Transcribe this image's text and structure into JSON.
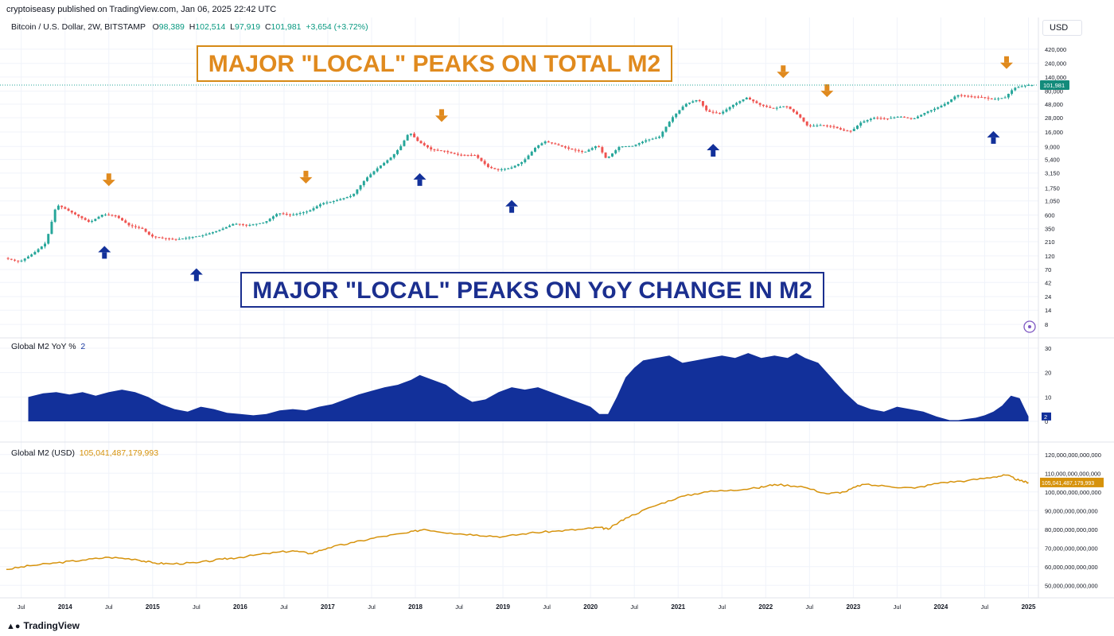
{
  "header": {
    "published_by": "cryptoiseasy published on TradingView.com, Jan 06, 2025 22:42 UTC",
    "symbol": "Bitcoin / U.S. Dollar, 2W, BITSTAMP",
    "o_label": "O",
    "o_value": "98,389",
    "h_label": "H",
    "h_value": "102,514",
    "l_label": "L",
    "l_value": "97,919",
    "c_label": "C",
    "c_value": "101,981",
    "change": "+3,654 (+3.72%)",
    "currency": "USD"
  },
  "annotations": {
    "orange_text": "MAJOR \"LOCAL\" PEAKS ON TOTAL M2",
    "blue_text": "MAJOR \"LOCAL\" PEAKS ON YoY CHANGE IN M2"
  },
  "footer": {
    "brand": "TradingView"
  },
  "colors": {
    "up": "#26a69a",
    "down": "#ef5350",
    "orange": "#e08a1e",
    "navy": "#12309a",
    "m2": "#d6920b",
    "grid": "#f0f3fa",
    "text": "#131722"
  },
  "chart_data": [
    {
      "type": "candlestick",
      "title": "Bitcoin / U.S. Dollar, 2W, BITSTAMP",
      "scale": "log",
      "last_value_label": "101,981",
      "y_tick_labels": [
        "420,000",
        "240,000",
        "140,000",
        "80,000",
        "48,000",
        "28,000",
        "16,000",
        "9,000",
        "5,400",
        "3,150",
        "1,750",
        "1,050",
        "600",
        "350",
        "210",
        "120",
        "70",
        "42",
        "24",
        "14",
        "8"
      ],
      "x_tick_labels": [
        "Jul",
        "2014",
        "Jul",
        "2015",
        "Jul",
        "2016",
        "Jul",
        "2017",
        "Jul",
        "2018",
        "Jul",
        "2019",
        "Jul",
        "2020",
        "Jul",
        "2021",
        "Jul",
        "2022",
        "Jul",
        "2023",
        "Jul",
        "2024",
        "Jul",
        "2025"
      ],
      "x_tick_dates": [
        2013.5,
        2014,
        2014.5,
        2015,
        2015.5,
        2016,
        2016.5,
        2017,
        2017.5,
        2018,
        2018.5,
        2019,
        2019.5,
        2020,
        2020.5,
        2021,
        2021.5,
        2022,
        2022.5,
        2023,
        2023.5,
        2024,
        2024.5,
        2025
      ],
      "x_range": [
        2013.33,
        2025.05
      ],
      "y_range": [
        5.5,
        650000
      ],
      "price_path": [
        [
          2013.33,
          110
        ],
        [
          2013.5,
          95
        ],
        [
          2013.65,
          130
        ],
        [
          2013.8,
          200
        ],
        [
          2013.92,
          900
        ],
        [
          2014.0,
          800
        ],
        [
          2014.15,
          600
        ],
        [
          2014.3,
          450
        ],
        [
          2014.45,
          620
        ],
        [
          2014.6,
          580
        ],
        [
          2014.75,
          400
        ],
        [
          2014.9,
          350
        ],
        [
          2015.0,
          260
        ],
        [
          2015.15,
          240
        ],
        [
          2015.3,
          230
        ],
        [
          2015.45,
          250
        ],
        [
          2015.6,
          270
        ],
        [
          2015.8,
          340
        ],
        [
          2015.95,
          430
        ],
        [
          2016.1,
          400
        ],
        [
          2016.3,
          450
        ],
        [
          2016.45,
          650
        ],
        [
          2016.6,
          600
        ],
        [
          2016.8,
          700
        ],
        [
          2016.95,
          950
        ],
        [
          2017.1,
          1050
        ],
        [
          2017.3,
          1300
        ],
        [
          2017.45,
          2500
        ],
        [
          2017.6,
          4000
        ],
        [
          2017.75,
          6000
        ],
        [
          2017.85,
          9000
        ],
        [
          2017.95,
          16000
        ],
        [
          2018.05,
          11000
        ],
        [
          2018.2,
          8000
        ],
        [
          2018.35,
          7500
        ],
        [
          2018.5,
          6500
        ],
        [
          2018.7,
          6400
        ],
        [
          2018.85,
          4000
        ],
        [
          2018.95,
          3600
        ],
        [
          2019.1,
          3800
        ],
        [
          2019.25,
          5000
        ],
        [
          2019.4,
          9000
        ],
        [
          2019.5,
          11000
        ],
        [
          2019.65,
          9500
        ],
        [
          2019.8,
          8000
        ],
        [
          2019.95,
          7200
        ],
        [
          2020.1,
          9500
        ],
        [
          2020.2,
          5500
        ],
        [
          2020.35,
          9000
        ],
        [
          2020.5,
          9200
        ],
        [
          2020.65,
          11500
        ],
        [
          2020.8,
          13000
        ],
        [
          2020.95,
          28000
        ],
        [
          2021.1,
          48000
        ],
        [
          2021.25,
          58000
        ],
        [
          2021.35,
          36000
        ],
        [
          2021.5,
          33000
        ],
        [
          2021.65,
          47000
        ],
        [
          2021.8,
          62000
        ],
        [
          2021.95,
          47000
        ],
        [
          2022.1,
          40000
        ],
        [
          2022.25,
          45000
        ],
        [
          2022.4,
          30000
        ],
        [
          2022.5,
          20000
        ],
        [
          2022.65,
          21000
        ],
        [
          2022.8,
          19500
        ],
        [
          2022.9,
          17000
        ],
        [
          2023.0,
          16500
        ],
        [
          2023.1,
          23000
        ],
        [
          2023.25,
          28000
        ],
        [
          2023.4,
          27000
        ],
        [
          2023.55,
          29500
        ],
        [
          2023.7,
          26500
        ],
        [
          2023.85,
          35000
        ],
        [
          2024.0,
          43000
        ],
        [
          2024.1,
          52000
        ],
        [
          2024.2,
          69000
        ],
        [
          2024.35,
          65000
        ],
        [
          2024.5,
          63000
        ],
        [
          2024.6,
          58000
        ],
        [
          2024.75,
          62000
        ],
        [
          2024.85,
          90000
        ],
        [
          2024.95,
          98000
        ],
        [
          2025.02,
          101981
        ]
      ],
      "peaks_total_m2_orange": [
        2014.5,
        2016.75,
        2018.3,
        2022.2,
        2022.7,
        2024.75
      ],
      "peaks_yoy_m2_blue": [
        2014.45,
        2015.5,
        2018.05,
        2019.1,
        2021.4,
        2024.6
      ]
    },
    {
      "type": "area",
      "title": "Global M2 YoY %",
      "legend_value": "2",
      "last_value_label": "2",
      "y_tick_labels": [
        "30",
        "20",
        "10",
        "0"
      ],
      "y_range": [
        0,
        30
      ],
      "series": [
        {
          "name": "Global M2 YoY %",
          "x": [
            2013.58,
            2013.75,
            2013.9,
            2014.05,
            2014.2,
            2014.35,
            2014.5,
            2014.65,
            2014.8,
            2014.95,
            2015.1,
            2015.25,
            2015.4,
            2015.55,
            2015.7,
            2015.85,
            2016.0,
            2016.15,
            2016.3,
            2016.45,
            2016.6,
            2016.75,
            2016.9,
            2017.05,
            2017.2,
            2017.35,
            2017.5,
            2017.65,
            2017.8,
            2017.95,
            2018.05,
            2018.2,
            2018.35,
            2018.5,
            2018.65,
            2018.8,
            2018.95,
            2019.1,
            2019.25,
            2019.4,
            2019.55,
            2019.7,
            2019.85,
            2020.0,
            2020.1,
            2020.2,
            2020.3,
            2020.4,
            2020.5,
            2020.6,
            2020.75,
            2020.9,
            2021.05,
            2021.2,
            2021.35,
            2021.5,
            2021.65,
            2021.8,
            2021.95,
            2022.1,
            2022.25,
            2022.35,
            2022.45,
            2022.6,
            2022.75,
            2022.9,
            2023.05,
            2023.2,
            2023.35,
            2023.5,
            2023.65,
            2023.8,
            2023.95,
            2024.1,
            2024.2,
            2024.3,
            2024.4,
            2024.5,
            2024.6,
            2024.7,
            2024.8,
            2024.9,
            2025.0
          ],
          "values": [
            10,
            11.5,
            12,
            11,
            12,
            10.5,
            12,
            13,
            12,
            10,
            7,
            5,
            4,
            6,
            5,
            3.5,
            3,
            2.5,
            3,
            4.5,
            5,
            4.5,
            6,
            7,
            9,
            11,
            12.5,
            14,
            15,
            17,
            19,
            17,
            15,
            11,
            8,
            9,
            12,
            14,
            13,
            14,
            12,
            10,
            8,
            6,
            3,
            3,
            10,
            18,
            22,
            25,
            26,
            27,
            24,
            25,
            26,
            27,
            26,
            28,
            26,
            27,
            26,
            28,
            26,
            24,
            18,
            12,
            7,
            5,
            4,
            6,
            5,
            4,
            2,
            0.5,
            0.5,
            1,
            1.5,
            2.5,
            4,
            6.5,
            10.5,
            9.5,
            2
          ]
        }
      ]
    },
    {
      "type": "line",
      "title": "Global M2 (USD)",
      "legend_value": "105,041,487,179,993",
      "last_value_label": "105,041,487,179,993",
      "y_tick_labels": [
        "120,000,000,000,000",
        "110,000,000,000,000",
        "100,000,000,000,000",
        "90,000,000,000,000",
        "80,000,000,000,000",
        "70,000,000,000,000",
        "60,000,000,000,000",
        "50,000,000,000,000"
      ],
      "y_range": [
        45000000000000,
        125000000000000
      ],
      "series": [
        {
          "name": "Global M2 (USD)",
          "x": [
            2013.33,
            2013.6,
            2013.9,
            2014.2,
            2014.5,
            2014.8,
            2015.0,
            2015.2,
            2015.5,
            2015.8,
            2016.0,
            2016.3,
            2016.6,
            2016.8,
            2017.0,
            2017.3,
            2017.6,
            2017.9,
            2018.1,
            2018.4,
            2018.7,
            2019.0,
            2019.3,
            2019.6,
            2019.9,
            2020.1,
            2020.2,
            2020.4,
            2020.7,
            2021.0,
            2021.3,
            2021.6,
            2021.9,
            2022.1,
            2022.4,
            2022.7,
            2022.9,
            2023.1,
            2023.4,
            2023.7,
            2024.0,
            2024.3,
            2024.6,
            2024.75,
            2024.9,
            2025.0
          ],
          "values": [
            58.5,
            60.5,
            62,
            63.5,
            65,
            64,
            62,
            61.5,
            62,
            64,
            65,
            67,
            68.5,
            67,
            70,
            73,
            76,
            78,
            80,
            78,
            77,
            76,
            78,
            79,
            80,
            81,
            80,
            86,
            92,
            97,
            100,
            101,
            102,
            104,
            103,
            99,
            100,
            104,
            103,
            102,
            105,
            106,
            108,
            109,
            106,
            105.04
          ]
        }
      ]
    }
  ]
}
